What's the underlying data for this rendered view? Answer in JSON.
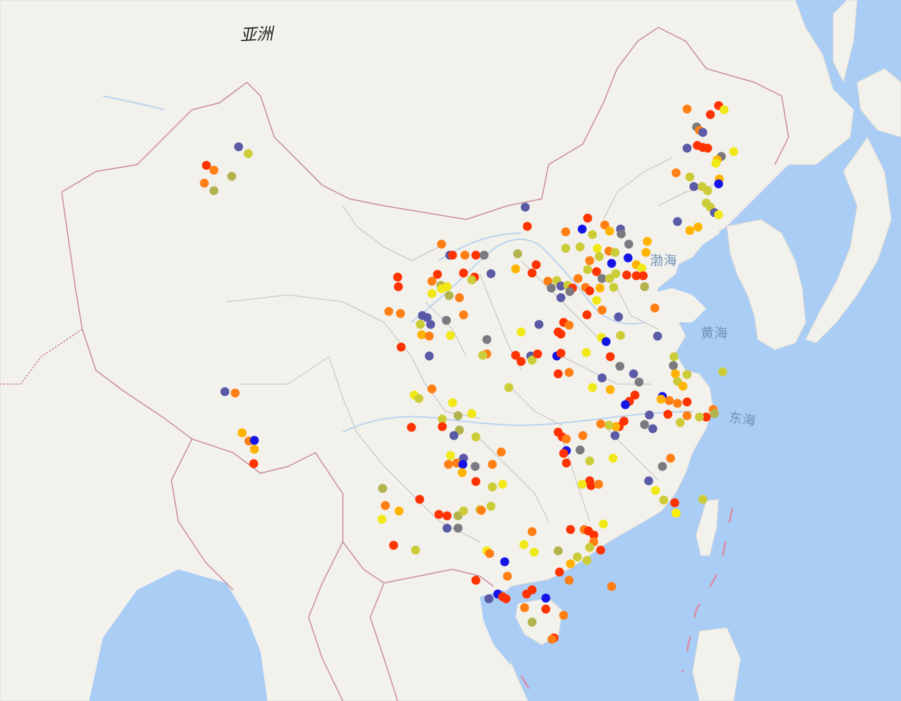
{
  "labels": {
    "continent": "亚洲",
    "bohai": "渤海",
    "huanghai": "黄海",
    "donghai": "东海"
  },
  "colors": {
    "water": "#aacdf6",
    "land": "#f2f1ec",
    "border_international": "#c9889a",
    "border_province": "#c8c8c8",
    "river": "#b9d3ef"
  },
  "marker_palette": {
    "red": "#ff3300",
    "orange": "#ff7f14",
    "amber": "#ffb300",
    "yellow": "#f0e817",
    "olive": "#b3b34d",
    "khaki": "#cccc38",
    "gray": "#7a7a80",
    "slate": "#5a5aa6",
    "blue": "#1414e6",
    "bright_yellow": "#ffee00"
  }
}
